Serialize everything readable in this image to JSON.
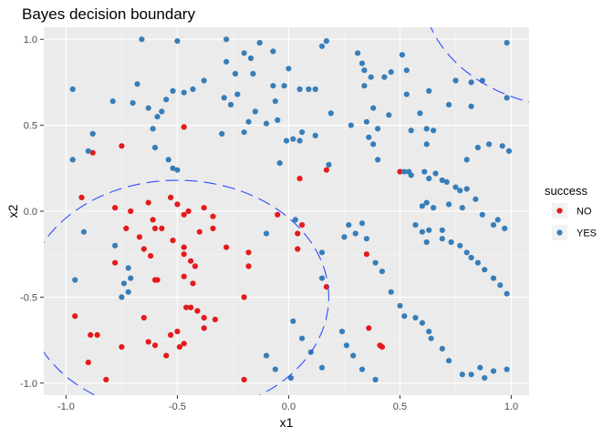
{
  "chart_data": {
    "type": "scatter",
    "title": "Bayes decision boundary",
    "xlabel": "x1",
    "ylabel": "x2",
    "xlim": [
      -1.1,
      1.08
    ],
    "ylim": [
      -1.07,
      1.07
    ],
    "x_ticks": [
      {
        "value": -1.0,
        "label": "-1.0"
      },
      {
        "value": -0.5,
        "label": "-0.5"
      },
      {
        "value": 0.0,
        "label": "0.0"
      },
      {
        "value": 0.5,
        "label": "0.5"
      },
      {
        "value": 1.0,
        "label": "1.0"
      }
    ],
    "y_ticks": [
      {
        "value": -1.0,
        "label": "-1.0"
      },
      {
        "value": -0.5,
        "label": "-0.5"
      },
      {
        "value": 0.0,
        "label": "0.0"
      },
      {
        "value": 0.5,
        "label": "0.5"
      },
      {
        "value": 1.0,
        "label": "1.0"
      }
    ],
    "grid": true,
    "panel_background": "#ebebeb",
    "legend": {
      "title": "success",
      "placement": "right",
      "entries": [
        {
          "label": "NO",
          "color": "#e41a1c"
        },
        {
          "label": "YES",
          "color": "#377eb8"
        }
      ]
    },
    "boundary_color": "#2e4dff",
    "boundary": {
      "circle": {
        "center": [
          -0.5,
          -0.5
        ],
        "radius": 0.68
      },
      "arc": {
        "center": [
          1.3,
          1.3
        ],
        "radius": 0.7
      }
    },
    "series": [
      {
        "name": "NO",
        "color": "#e41a1c",
        "points": [
          [
            -0.93,
            0.08
          ],
          [
            -0.88,
            0.34
          ],
          [
            -0.75,
            0.38
          ],
          [
            -0.47,
            0.49
          ],
          [
            0.05,
            0.19
          ],
          [
            0.17,
            0.24
          ],
          [
            0.5,
            0.23
          ],
          [
            -0.78,
            0.02
          ],
          [
            -0.73,
            -0.1
          ],
          [
            -0.71,
            0.0
          ],
          [
            -0.63,
            0.05
          ],
          [
            -0.61,
            -0.05
          ],
          [
            -0.6,
            -0.1
          ],
          [
            -0.53,
            0.08
          ],
          [
            -0.5,
            0.04
          ],
          [
            -0.47,
            -0.02
          ],
          [
            -0.45,
            0.0
          ],
          [
            -0.4,
            -0.12
          ],
          [
            -0.38,
            0.02
          ],
          [
            -0.34,
            -0.03
          ],
          [
            -0.34,
            -0.1
          ],
          [
            -0.57,
            -0.1
          ],
          [
            -0.52,
            -0.17
          ],
          [
            -0.67,
            -0.15
          ],
          [
            -0.65,
            -0.22
          ],
          [
            -0.62,
            -0.26
          ],
          [
            -0.47,
            -0.21
          ],
          [
            -0.47,
            -0.25
          ],
          [
            -0.44,
            -0.29
          ],
          [
            -0.78,
            -0.3
          ],
          [
            -0.6,
            -0.4
          ],
          [
            -0.59,
            -0.4
          ],
          [
            -0.47,
            -0.38
          ],
          [
            -0.42,
            -0.32
          ],
          [
            -0.43,
            -0.42
          ],
          [
            -0.44,
            -0.56
          ],
          [
            -0.46,
            -0.56
          ],
          [
            -0.41,
            -0.58
          ],
          [
            -0.28,
            -0.21
          ],
          [
            -0.18,
            -0.32
          ],
          [
            -0.18,
            -0.24
          ],
          [
            -0.2,
            -0.5
          ],
          [
            -0.38,
            -0.62
          ],
          [
            -0.33,
            -0.63
          ],
          [
            -0.38,
            -0.68
          ],
          [
            -0.53,
            -0.72
          ],
          [
            -0.5,
            -0.7
          ],
          [
            -0.65,
            -0.62
          ],
          [
            -0.63,
            -0.76
          ],
          [
            -0.6,
            -0.78
          ],
          [
            -0.55,
            -0.84
          ],
          [
            -0.49,
            -0.79
          ],
          [
            -0.47,
            -0.77
          ],
          [
            -0.75,
            -0.79
          ],
          [
            -0.86,
            -0.72
          ],
          [
            -0.89,
            -0.72
          ],
          [
            -0.96,
            -0.61
          ],
          [
            -0.9,
            -0.88
          ],
          [
            -0.82,
            -0.98
          ],
          [
            -0.2,
            -0.98
          ],
          [
            0.04,
            -0.22
          ],
          [
            0.06,
            -0.08
          ],
          [
            0.17,
            -0.44
          ],
          [
            0.35,
            -0.25
          ],
          [
            0.36,
            -0.68
          ],
          [
            0.41,
            -0.78
          ],
          [
            -0.05,
            -0.02
          ],
          [
            0.42,
            -0.79
          ],
          [
            0.04,
            -0.13
          ]
        ]
      },
      {
        "name": "YES",
        "color": "#377eb8",
        "points": [
          [
            -0.97,
            0.71
          ],
          [
            -0.97,
            0.3
          ],
          [
            -0.9,
            0.35
          ],
          [
            -0.88,
            0.45
          ],
          [
            -0.79,
            0.64
          ],
          [
            -0.7,
            0.63
          ],
          [
            -0.68,
            0.74
          ],
          [
            -0.66,
            1.0
          ],
          [
            -0.63,
            0.6
          ],
          [
            -0.61,
            0.48
          ],
          [
            -0.6,
            0.37
          ],
          [
            -0.59,
            0.55
          ],
          [
            -0.57,
            0.58
          ],
          [
            -0.55,
            0.65
          ],
          [
            -0.54,
            0.3
          ],
          [
            -0.52,
            0.25
          ],
          [
            -0.5,
            0.24
          ],
          [
            -0.52,
            0.7
          ],
          [
            -0.47,
            0.69
          ],
          [
            -0.43,
            0.71
          ],
          [
            -0.38,
            0.76
          ],
          [
            -0.3,
            0.45
          ],
          [
            -0.5,
            0.99
          ],
          [
            -0.28,
            0.87
          ],
          [
            -0.29,
            0.66
          ],
          [
            -0.26,
            0.62
          ],
          [
            -0.24,
            0.8
          ],
          [
            -0.23,
            0.68
          ],
          [
            -0.28,
            1.0
          ],
          [
            -0.2,
            0.92
          ],
          [
            -0.17,
            0.89
          ],
          [
            -0.16,
            0.8
          ],
          [
            -0.13,
            0.98
          ],
          [
            -0.07,
            0.93
          ],
          [
            -0.07,
            0.73
          ],
          [
            -0.06,
            0.64
          ],
          [
            -0.05,
            0.53
          ],
          [
            -0.04,
            0.28
          ],
          [
            -0.02,
            0.73
          ],
          [
            0.0,
            0.83
          ],
          [
            0.05,
            0.71
          ],
          [
            -0.2,
            0.46
          ],
          [
            -0.18,
            0.52
          ],
          [
            -0.15,
            0.58
          ],
          [
            -0.1,
            0.51
          ],
          [
            -0.01,
            0.41
          ],
          [
            0.02,
            0.42
          ],
          [
            0.05,
            0.41
          ],
          [
            0.06,
            0.46
          ],
          [
            0.09,
            0.71
          ],
          [
            0.12,
            0.71
          ],
          [
            0.12,
            0.44
          ],
          [
            0.15,
            0.96
          ],
          [
            0.17,
            0.99
          ],
          [
            0.18,
            0.27
          ],
          [
            0.19,
            0.57
          ],
          [
            0.28,
            0.5
          ],
          [
            0.31,
            0.92
          ],
          [
            0.33,
            0.86
          ],
          [
            0.34,
            0.82
          ],
          [
            0.34,
            0.73
          ],
          [
            0.35,
            0.52
          ],
          [
            0.36,
            0.43
          ],
          [
            0.37,
            0.78
          ],
          [
            0.38,
            0.39
          ],
          [
            0.38,
            0.6
          ],
          [
            0.4,
            0.48
          ],
          [
            0.4,
            0.3
          ],
          [
            0.43,
            0.78
          ],
          [
            0.45,
            0.56
          ],
          [
            0.46,
            0.81
          ],
          [
            0.51,
            0.91
          ],
          [
            0.53,
            0.82
          ],
          [
            0.53,
            0.68
          ],
          [
            0.55,
            0.47
          ],
          [
            0.59,
            0.57
          ],
          [
            0.62,
            0.39
          ],
          [
            0.62,
            0.48
          ],
          [
            0.63,
            0.7
          ],
          [
            0.65,
            0.47
          ],
          [
            0.72,
            0.62
          ],
          [
            0.75,
            0.76
          ],
          [
            0.82,
            0.75
          ],
          [
            0.82,
            0.61
          ],
          [
            0.8,
            0.3
          ],
          [
            0.85,
            0.37
          ],
          [
            0.9,
            0.39
          ],
          [
            0.96,
            0.38
          ],
          [
            0.99,
            0.35
          ],
          [
            0.98,
            0.98
          ],
          [
            0.98,
            0.66
          ],
          [
            0.87,
            0.76
          ],
          [
            0.52,
            0.23
          ],
          [
            0.54,
            0.23
          ],
          [
            0.61,
            0.23
          ],
          [
            0.55,
            0.21
          ],
          [
            0.63,
            0.19
          ],
          [
            0.66,
            0.22
          ],
          [
            0.69,
            0.18
          ],
          [
            0.71,
            0.17
          ],
          [
            0.75,
            0.14
          ],
          [
            0.77,
            0.12
          ],
          [
            0.8,
            0.13
          ],
          [
            0.62,
            0.05
          ],
          [
            0.6,
            0.03
          ],
          [
            0.65,
            0.02
          ],
          [
            0.72,
            0.04
          ],
          [
            0.78,
            0.02
          ],
          [
            0.84,
            0.07
          ],
          [
            0.87,
            -0.02
          ],
          [
            0.92,
            -0.08
          ],
          [
            0.94,
            -0.05
          ],
          [
            0.97,
            -0.1
          ],
          [
            0.57,
            -0.08
          ],
          [
            0.6,
            -0.12
          ],
          [
            0.63,
            -0.11
          ],
          [
            0.69,
            -0.11
          ],
          [
            0.62,
            -0.18
          ],
          [
            0.69,
            -0.16
          ],
          [
            0.73,
            -0.18
          ],
          [
            0.77,
            -0.2
          ],
          [
            0.8,
            -0.24
          ],
          [
            0.82,
            -0.27
          ],
          [
            0.85,
            -0.3
          ],
          [
            0.88,
            -0.34
          ],
          [
            0.92,
            -0.39
          ],
          [
            0.95,
            -0.43
          ],
          [
            0.98,
            -0.48
          ],
          [
            -0.92,
            -0.12
          ],
          [
            -0.78,
            -0.2
          ],
          [
            -0.72,
            -0.33
          ],
          [
            -0.71,
            -0.39
          ],
          [
            -0.74,
            -0.42
          ],
          [
            -0.72,
            -0.47
          ],
          [
            -0.75,
            -0.5
          ],
          [
            -0.96,
            -0.4
          ],
          [
            -0.1,
            -0.13
          ],
          [
            0.03,
            -0.05
          ],
          [
            0.15,
            -0.24
          ],
          [
            0.15,
            -0.39
          ],
          [
            0.25,
            -0.15
          ],
          [
            0.27,
            -0.08
          ],
          [
            0.3,
            -0.13
          ],
          [
            0.33,
            -0.07
          ],
          [
            0.35,
            -0.16
          ],
          [
            0.39,
            -0.3
          ],
          [
            0.42,
            -0.35
          ],
          [
            0.46,
            -0.47
          ],
          [
            0.5,
            -0.55
          ],
          [
            0.52,
            -0.61
          ],
          [
            0.57,
            -0.62
          ],
          [
            0.6,
            -0.65
          ],
          [
            0.63,
            -0.7
          ],
          [
            0.64,
            -0.74
          ],
          [
            0.69,
            -0.8
          ],
          [
            0.72,
            -0.87
          ],
          [
            0.78,
            -0.95
          ],
          [
            0.82,
            -0.95
          ],
          [
            0.86,
            -0.91
          ],
          [
            0.88,
            -0.97
          ],
          [
            0.92,
            -0.93
          ],
          [
            0.98,
            -0.92
          ],
          [
            0.02,
            -0.64
          ],
          [
            0.06,
            -0.74
          ],
          [
            0.1,
            -0.82
          ],
          [
            0.15,
            -0.91
          ],
          [
            0.24,
            -0.7
          ],
          [
            0.26,
            -0.78
          ],
          [
            0.29,
            -0.84
          ],
          [
            0.33,
            -0.92
          ],
          [
            0.39,
            -0.98
          ],
          [
            -0.1,
            -0.84
          ],
          [
            -0.06,
            -0.92
          ],
          [
            0.01,
            -0.97
          ]
        ]
      }
    ]
  }
}
